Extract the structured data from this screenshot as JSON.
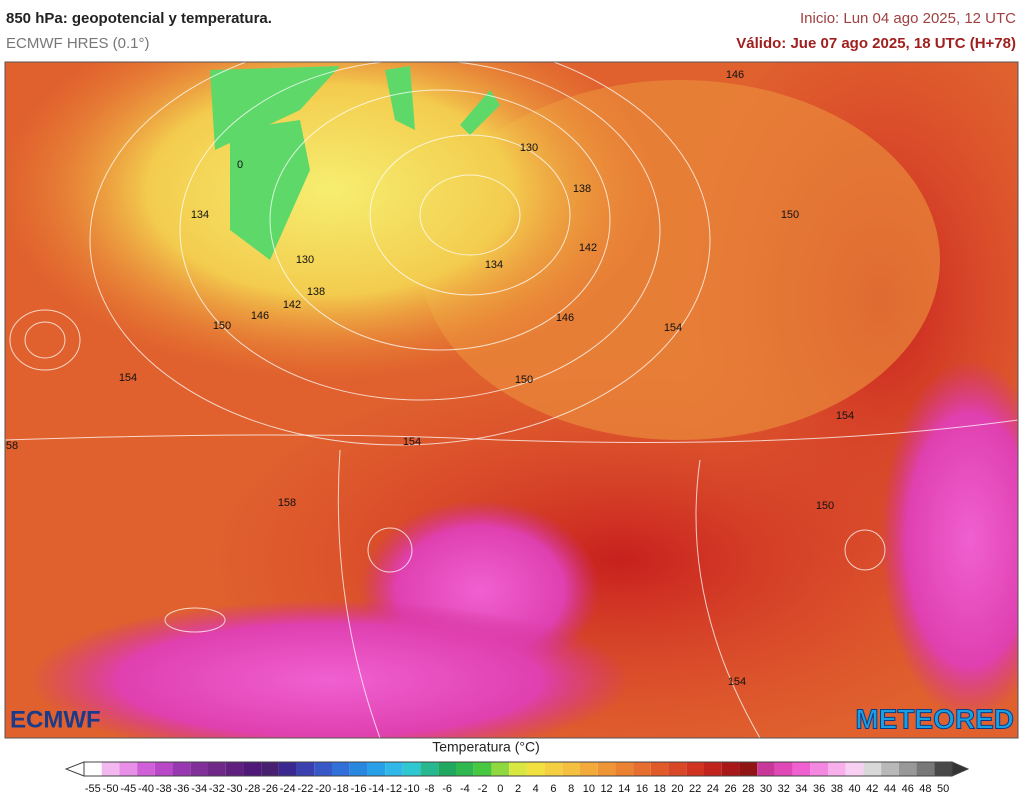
{
  "header": {
    "title": "850 hPa: geopotencial y temperatura.",
    "model": "ECMWF HRES (0.1°)",
    "init": "Inicio: Lun 04 ago 2025, 12 UTC",
    "valid": "Válido: Jue 07 ago 2025, 18 UTC (H+78)"
  },
  "map": {
    "contour_labels": [
      "130",
      "134",
      "130",
      "138",
      "142",
      "146",
      "150",
      "154",
      "134",
      "138",
      "142",
      "146",
      "150",
      "154",
      "154",
      "158",
      "146",
      "150",
      "154",
      "150",
      "154",
      "58",
      "0"
    ],
    "logos": [
      "ECMWF",
      "METEORED"
    ]
  },
  "legend": {
    "title": "Temperatura (°C)",
    "ticks": [
      -55,
      -50,
      -45,
      -40,
      -38,
      -36,
      -34,
      -32,
      -30,
      -28,
      -26,
      -24,
      -22,
      -20,
      -18,
      -16,
      -14,
      -12,
      -10,
      -8,
      -6,
      -4,
      -2,
      0,
      2,
      4,
      6,
      8,
      10,
      12,
      14,
      16,
      18,
      20,
      22,
      24,
      26,
      28,
      30,
      32,
      34,
      36,
      38,
      40,
      42,
      44,
      46,
      48,
      50
    ]
  }
}
